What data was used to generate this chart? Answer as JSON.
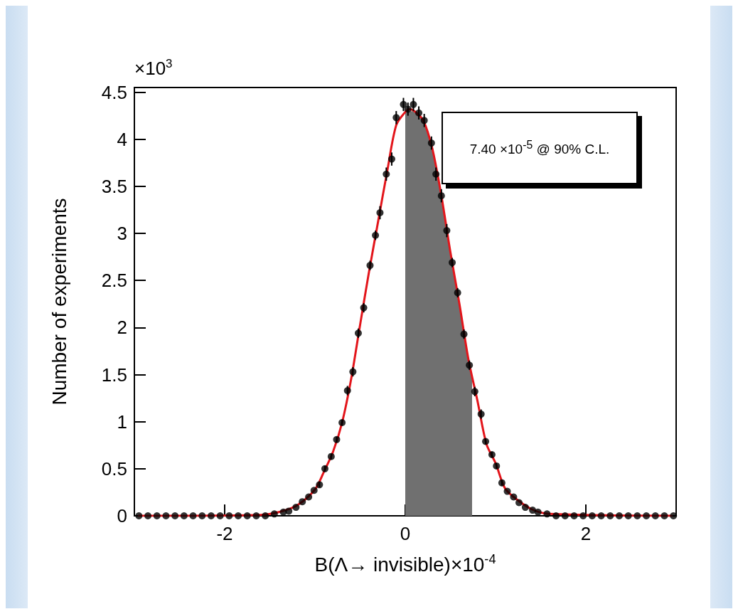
{
  "chart_data": {
    "type": "scatter",
    "xlabel": "B(Λ→ invisible)×10$^{-4}$",
    "ylabel": "Number of experiments",
    "annotations": [
      "×10$^{3}$",
      "7.40 ×10$^{-5}$ @ 90% C.L."
    ],
    "xlim": [
      -3,
      3
    ],
    "ylim": [
      0,
      4.55
    ],
    "xticks": [
      -2,
      0,
      2
    ],
    "yticks": [
      0,
      0.5,
      1,
      1.5,
      2,
      2.5,
      3,
      3.5,
      4,
      4.5
    ],
    "series": [
      {
        "type": "area",
        "color": "#707070",
        "x": [
          0,
          0.1,
          0.2,
          0.3,
          0.4,
          0.5,
          0.6,
          0.7,
          0.74
        ],
        "values": [
          4.29,
          4.3,
          4.2,
          3.9,
          3.4,
          2.8,
          2.25,
          1.66,
          1.45
        ]
      },
      {
        "type": "line",
        "color": "#e3151b",
        "line_style": "solid",
        "marker": "none",
        "x": [
          -2.95,
          -1.6,
          -1.4,
          -1.2,
          -1.0,
          -0.9,
          -0.8,
          -0.7,
          -0.6,
          -0.5,
          -0.4,
          -0.3,
          -0.2,
          -0.1,
          0,
          0.05,
          0.1,
          0.2,
          0.3,
          0.4,
          0.5,
          0.6,
          0.7,
          0.8,
          0.9,
          1.0,
          1.1,
          1.2,
          1.4,
          1.6,
          2.95
        ],
        "values": [
          0,
          0.01,
          0.04,
          0.11,
          0.28,
          0.47,
          0.68,
          0.99,
          1.45,
          2.03,
          2.6,
          3.13,
          3.66,
          4.15,
          4.29,
          4.32,
          4.3,
          4.2,
          3.9,
          3.4,
          2.8,
          2.25,
          1.66,
          1.22,
          0.76,
          0.56,
          0.3,
          0.2,
          0.07,
          0.02,
          0
        ]
      },
      {
        "color": "#000000",
        "marker": "circle",
        "x": [
          -2.95,
          -2.85,
          -2.75,
          -2.65,
          -2.55,
          -2.45,
          -2.35,
          -2.25,
          -2.15,
          -2.05,
          -1.95,
          -1.85,
          -1.75,
          -1.65,
          -1.55,
          -1.45,
          -1.35,
          -1.29,
          -1.21,
          -1.14,
          -1.07,
          -1.01,
          -0.95,
          -0.89,
          -0.82,
          -0.76,
          -0.7,
          -0.64,
          -0.58,
          -0.52,
          -0.46,
          -0.39,
          -0.33,
          -0.28,
          -0.21,
          -0.15,
          -0.1,
          -0.02,
          0.03,
          0.09,
          0.15,
          0.21,
          0.29,
          0.34,
          0.4,
          0.46,
          0.52,
          0.58,
          0.65,
          0.71,
          0.77,
          0.84,
          0.89,
          0.96,
          1.01,
          1.07,
          1.13,
          1.2,
          1.26,
          1.33,
          1.41,
          1.47,
          1.57,
          1.67,
          1.77,
          1.87,
          1.97,
          2.07,
          2.17,
          2.27,
          2.37,
          2.47,
          2.57,
          2.67,
          2.77,
          2.87,
          2.97
        ],
        "values": [
          0,
          0,
          0,
          0,
          0,
          0,
          0,
          0,
          0,
          0,
          0,
          0,
          0,
          0,
          0,
          0.02,
          0.04,
          0.05,
          0.09,
          0.15,
          0.2,
          0.27,
          0.33,
          0.5,
          0.63,
          0.81,
          0.99,
          1.33,
          1.53,
          1.94,
          2.21,
          2.66,
          2.98,
          3.22,
          3.63,
          3.79,
          4.23,
          4.37,
          4.32,
          4.37,
          4.28,
          4.2,
          3.96,
          3.63,
          3.4,
          3.03,
          2.69,
          2.37,
          1.93,
          1.6,
          1.32,
          1.08,
          0.79,
          0.65,
          0.53,
          0.35,
          0.26,
          0.2,
          0.14,
          0.09,
          0.06,
          0.04,
          0.02,
          0,
          0,
          0,
          0,
          0,
          0,
          0,
          0,
          0,
          0,
          0,
          0,
          0,
          0
        ],
        "errors": [
          null,
          null,
          null,
          null,
          null,
          null,
          null,
          null,
          null,
          null,
          null,
          null,
          null,
          null,
          null,
          null,
          null,
          null,
          null,
          null,
          null,
          null,
          0.03,
          0.03,
          0.03,
          0.03,
          0.03,
          0.05,
          0.05,
          0.05,
          0.05,
          0.05,
          0.05,
          0.07,
          0.07,
          0.07,
          0.07,
          0.07,
          0.07,
          0.07,
          0.07,
          0.07,
          0.07,
          0.07,
          0.07,
          0.07,
          0.05,
          0.05,
          0.05,
          0.05,
          0.05,
          0.05,
          0.03,
          0.03,
          0.03,
          0.03,
          null,
          null,
          null,
          null,
          null,
          null,
          null,
          null,
          null,
          null,
          null,
          null,
          null,
          null,
          null,
          null,
          null,
          null,
          null,
          null,
          null
        ]
      }
    ]
  }
}
